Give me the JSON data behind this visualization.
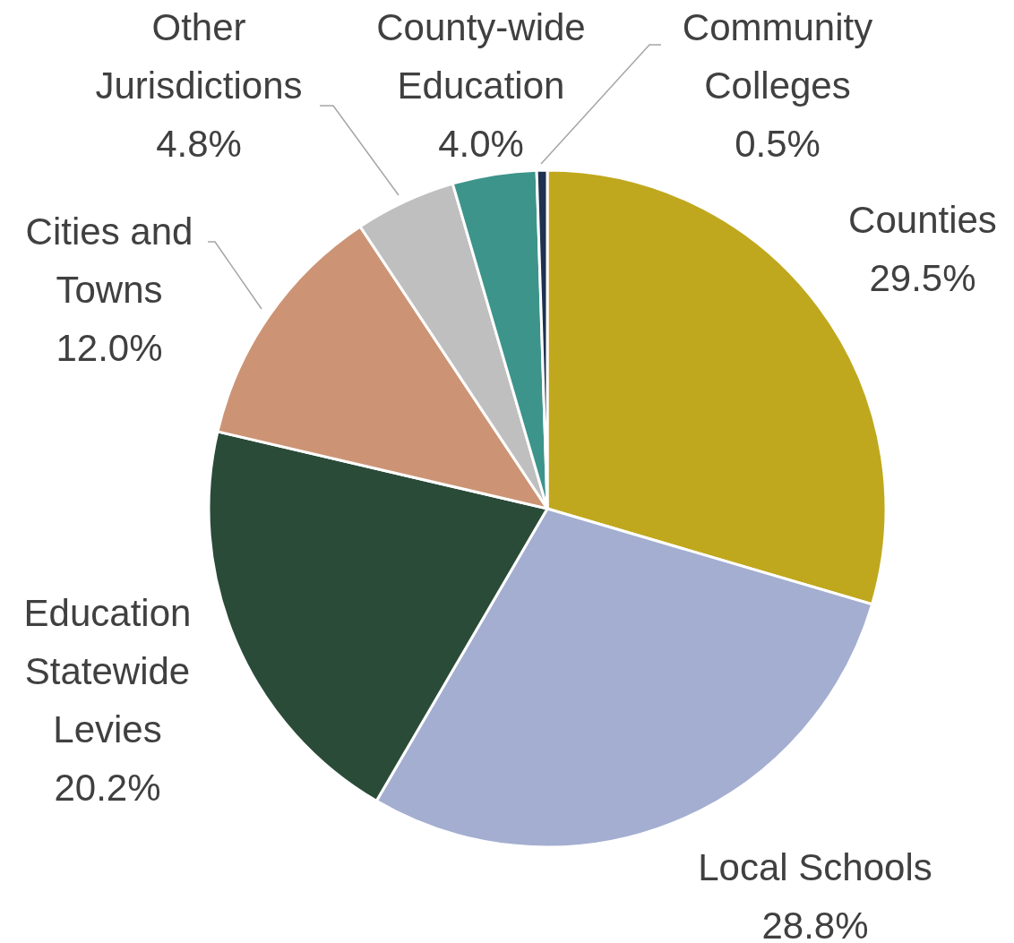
{
  "chart_data": {
    "type": "pie",
    "categories": [
      "Counties",
      "Local Schools",
      "Education Statewide Levies",
      "Cities and Towns",
      "Other Jurisdictions",
      "County-wide Education",
      "Community Colleges"
    ],
    "values": [
      29.5,
      28.8,
      20.2,
      12.0,
      4.8,
      4.0,
      0.5
    ],
    "value_labels": [
      "29.5%",
      "28.8%",
      "20.2%",
      "12.0%",
      "4.8%",
      "4.0%",
      "0.5%"
    ],
    "colors": [
      "#c0a81e",
      "#a3aed1",
      "#2a4b38",
      "#cc9475",
      "#bfbfbf",
      "#3d948a",
      "#1f3050"
    ],
    "legend": false
  }
}
